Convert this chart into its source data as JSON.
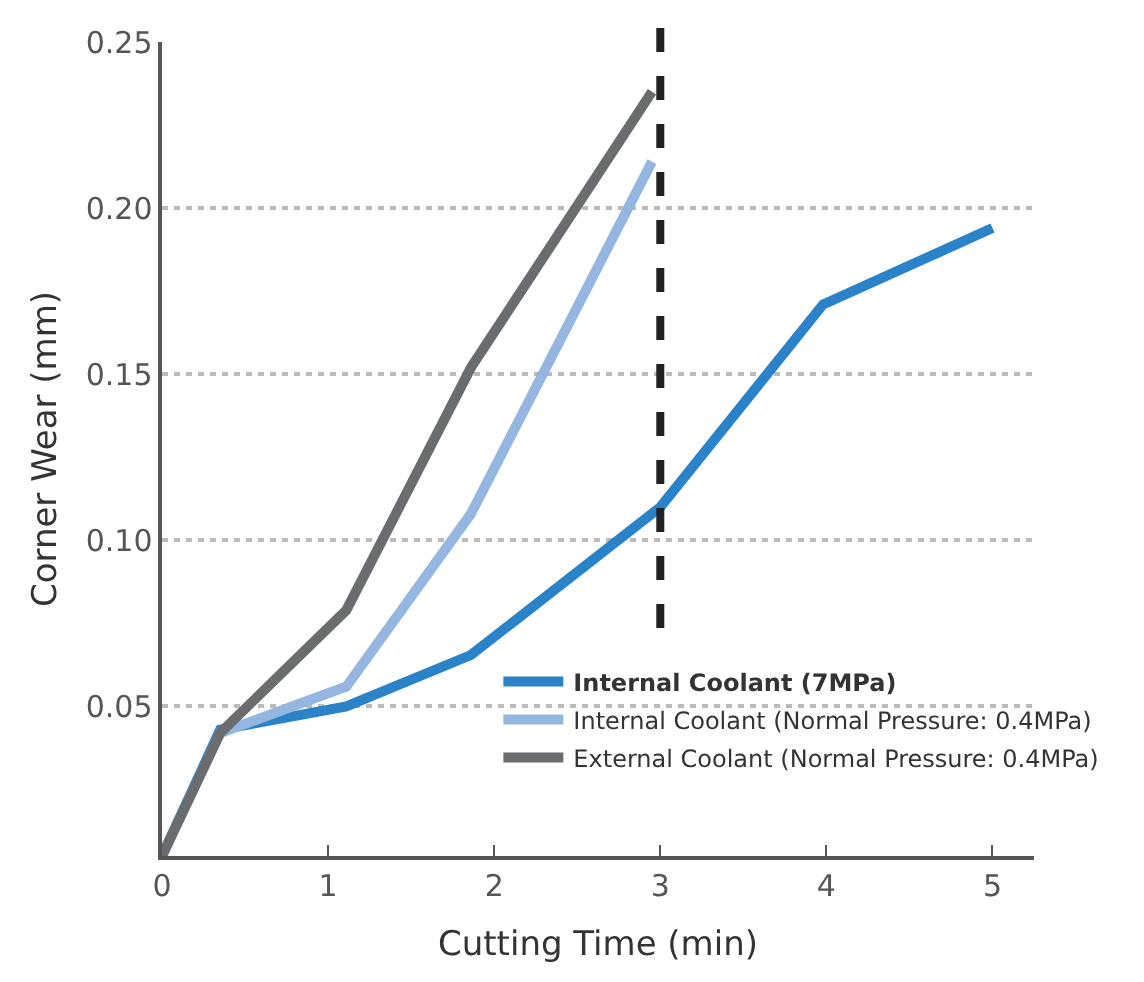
{
  "chart_data": {
    "type": "line",
    "xlabel": "Cutting Time (min)",
    "ylabel": "Corner Wear (mm)",
    "xlim": [
      0,
      5.25
    ],
    "xticks": [
      0,
      1,
      2,
      3,
      4,
      5
    ],
    "ylim": [
      0.005,
      0.25
    ],
    "yticks": [
      {
        "value": 0.05,
        "label": "0.05"
      },
      {
        "value": 0.1,
        "label": "0.10"
      },
      {
        "value": 0.15,
        "label": "0.15"
      },
      {
        "value": 0.2,
        "label": "0.20"
      },
      {
        "value": 0.25,
        "label": "0.25"
      }
    ],
    "grid": "y",
    "legend": "bottom right",
    "marker": "none",
    "line_style": "solid",
    "ref_lines": [
      {
        "axis": "x",
        "value": 3,
        "color": "#222222",
        "line_style": "dashed"
      }
    ],
    "series": [
      {
        "name": "Internal Coolant (7MPa)",
        "color": "#2a82c9",
        "x": [
          0,
          0.35,
          1.11,
          1.86,
          3.0,
          3.98,
          5.0
        ],
        "values": [
          0.005,
          0.043,
          0.05,
          0.0655,
          0.11,
          0.171,
          0.194
        ]
      },
      {
        "name": "Internal Coolant (Normal Pressure: 0.4MPa)",
        "color": "#94b6e0",
        "x": [
          0,
          0.35,
          1.11,
          1.86,
          2.95
        ],
        "values": [
          0.005,
          0.042,
          0.056,
          0.108,
          0.214
        ]
      },
      {
        "name": "External Coolant (Normal Pressure: 0.4MPa)",
        "color": "#6b6c70",
        "x": [
          0,
          0.35,
          1.11,
          1.86,
          2.95
        ],
        "values": [
          0.005,
          0.042,
          0.079,
          0.152,
          0.235
        ]
      }
    ]
  }
}
